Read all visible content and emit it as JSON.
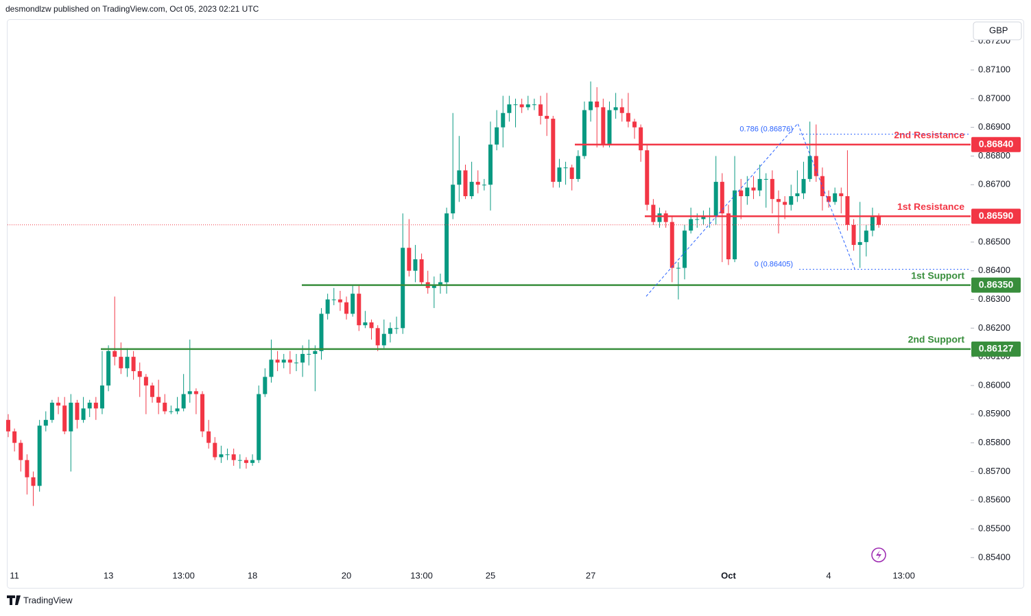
{
  "header": {
    "byline": "desmondlzw published on TradingView.com, Oct 05, 2023 02:21 UTC",
    "currency": "GBP",
    "brand": "TradingView"
  },
  "chart_data": {
    "type": "candlestick",
    "up_color": "#089981",
    "down_color": "#f23645",
    "categories": [
      null,
      "11",
      null,
      null,
      null,
      null,
      null,
      null,
      null,
      null,
      null,
      null,
      null,
      null,
      null,
      null,
      "13",
      null,
      null,
      null,
      null,
      null,
      null,
      null,
      null,
      null,
      null,
      null,
      "13:00",
      null,
      null,
      null,
      null,
      null,
      null,
      null,
      null,
      null,
      null,
      "18",
      null,
      null,
      null,
      null,
      null,
      null,
      null,
      null,
      null,
      null,
      null,
      null,
      null,
      null,
      "20",
      null,
      null,
      null,
      null,
      null,
      null,
      null,
      null,
      null,
      null,
      null,
      "13:00",
      null,
      null,
      null,
      null,
      null,
      null,
      null,
      null,
      null,
      null,
      "25",
      null,
      null,
      null,
      null,
      null,
      null,
      null,
      null,
      null,
      null,
      null,
      null,
      null,
      null,
      null,
      "27",
      null,
      null,
      null,
      null,
      null,
      null,
      null,
      null,
      null,
      null,
      null,
      null,
      null,
      null,
      null,
      null,
      null,
      null,
      null,
      null,
      null,
      "Oct",
      null,
      null,
      null,
      null,
      null,
      null,
      null,
      null,
      null,
      null,
      null,
      null,
      null,
      null,
      null,
      "4",
      null,
      null,
      null,
      null,
      null,
      null,
      null,
      null,
      null,
      null,
      null,
      "13:00"
    ],
    "open": [
      0.8588,
      0.8584,
      0.858,
      0.8574,
      0.8568,
      0.8565,
      0.8586,
      0.8588,
      0.8594,
      0.8593,
      0.8584,
      0.8594,
      0.8588,
      0.8592,
      0.8594,
      0.8592,
      0.86,
      0.8612,
      0.861,
      0.8606,
      0.861,
      0.8605,
      0.8603,
      0.86,
      0.8596,
      0.8594,
      0.8591,
      0.8591,
      0.8592,
      0.8597,
      0.8598,
      0.8597,
      0.8584,
      0.858,
      0.8575,
      0.8576,
      0.8576,
      0.8574,
      0.8574,
      0.8573,
      0.8574,
      0.8597,
      0.8603,
      0.8609,
      0.8608,
      0.8609,
      0.8608,
      0.8608,
      0.8611,
      0.8611,
      0.8612,
      0.8625,
      0.863,
      0.863,
      0.8629,
      0.8625,
      0.8632,
      0.8621,
      0.8622,
      0.862,
      0.8614,
      0.8618,
      0.862,
      0.862,
      0.8648,
      0.864,
      0.8644,
      0.8636,
      0.8634,
      0.8635,
      0.8636,
      0.866,
      0.867,
      0.8675,
      0.8666,
      0.8671,
      0.867,
      0.867,
      0.8684,
      0.869,
      0.8695,
      0.8698,
      0.8698,
      0.8697,
      0.8698,
      0.8698,
      0.8694,
      0.8693,
      0.8671,
      0.8676,
      0.8676,
      0.8672,
      0.868,
      0.8696,
      0.8699,
      0.8697,
      0.8684,
      0.8696,
      0.8697,
      0.8695,
      0.8692,
      0.869,
      0.8682,
      0.8663,
      0.8657,
      0.866,
      0.8657,
      0.8641,
      0.8641,
      0.8654,
      0.8658,
      0.8658,
      0.8659,
      0.8659,
      0.8671,
      0.866,
      0.8644,
      0.8668,
      0.8666,
      0.8669,
      0.8668,
      0.8672,
      0.8672,
      0.8665,
      0.8664,
      0.8663,
      0.8666,
      0.8667,
      0.8672,
      0.868,
      0.8673,
      0.8666,
      0.8664,
      0.8667,
      0.8666,
      0.8656,
      0.8649,
      0.865,
      0.8654,
      0.8659,
      null,
      null,
      null,
      null
    ],
    "high": [
      0.859,
      0.8585,
      0.8581,
      0.8576,
      0.857,
      0.8588,
      0.8591,
      0.8595,
      0.8596,
      0.8596,
      0.8597,
      0.8595,
      0.8596,
      0.8595,
      0.8596,
      0.8612,
      0.8614,
      0.8631,
      0.8615,
      0.8613,
      0.8612,
      0.8608,
      0.8604,
      0.8601,
      0.8602,
      0.8597,
      0.8593,
      0.8596,
      0.8604,
      0.8616,
      0.8599,
      0.8598,
      0.8588,
      0.8582,
      0.8579,
      0.8578,
      0.8578,
      0.8576,
      0.8575,
      0.8576,
      0.86,
      0.8606,
      0.8616,
      0.8612,
      0.8611,
      0.8612,
      0.8611,
      0.8614,
      0.8616,
      0.8614,
      0.8627,
      0.8632,
      0.8634,
      0.8633,
      0.8631,
      0.8635,
      0.8635,
      0.8626,
      0.8623,
      0.8621,
      0.8623,
      0.8622,
      0.8624,
      0.866,
      0.8658,
      0.8649,
      0.8646,
      0.864,
      0.8638,
      0.8639,
      0.8662,
      0.8695,
      0.8687,
      0.8677,
      0.8678,
      0.8675,
      0.8672,
      0.8692,
      0.8696,
      0.8701,
      0.8701,
      0.87,
      0.87,
      0.8701,
      0.87,
      0.8701,
      0.8702,
      0.8694,
      0.8679,
      0.8678,
      0.8677,
      0.8682,
      0.8699,
      0.8706,
      0.8704,
      0.87,
      0.8699,
      0.8702,
      0.87,
      0.8702,
      0.8693,
      0.8691,
      0.8684,
      0.8665,
      0.8662,
      0.8661,
      0.8659,
      0.8643,
      0.8656,
      0.8662,
      0.866,
      0.8661,
      0.8662,
      0.868,
      0.8674,
      0.8663,
      0.868,
      0.8672,
      0.8673,
      0.8673,
      0.8677,
      0.8674,
      0.8675,
      0.8668,
      0.8666,
      0.867,
      0.8675,
      0.8678,
      0.8692,
      0.8691,
      0.8676,
      0.8668,
      0.8669,
      0.8669,
      0.8682,
      0.8658,
      0.8664,
      0.8656,
      0.8662,
      0.866,
      null,
      null,
      null,
      null
    ],
    "low": [
      0.8582,
      0.8577,
      0.857,
      0.8562,
      0.8558,
      0.8563,
      0.8584,
      0.8587,
      0.859,
      0.8583,
      0.857,
      0.8585,
      0.8587,
      0.8589,
      0.8588,
      0.859,
      0.8598,
      0.8607,
      0.8604,
      0.8603,
      0.8602,
      0.8596,
      0.859,
      0.8594,
      0.859,
      0.859,
      0.859,
      0.859,
      0.8591,
      0.8594,
      0.859,
      0.8582,
      0.8578,
      0.8574,
      0.8573,
      0.8574,
      0.8572,
      0.8571,
      0.8571,
      0.8572,
      0.8573,
      0.8596,
      0.8601,
      0.8605,
      0.8606,
      0.8604,
      0.8605,
      0.8603,
      0.8607,
      0.8598,
      0.8609,
      0.8623,
      0.8628,
      0.8626,
      0.8623,
      0.8624,
      0.8619,
      0.862,
      0.8616,
      0.8612,
      0.8613,
      0.8615,
      0.8618,
      0.8618,
      0.8638,
      0.8636,
      0.8635,
      0.8632,
      0.8627,
      0.8632,
      0.8632,
      0.8658,
      0.8664,
      0.8665,
      0.8665,
      0.8667,
      0.8668,
      0.8661,
      0.8682,
      0.8683,
      0.8692,
      0.869,
      0.8695,
      0.8696,
      0.8696,
      0.8691,
      0.8687,
      0.8669,
      0.8669,
      0.867,
      0.8668,
      0.8671,
      0.8679,
      0.8692,
      0.8683,
      0.8683,
      0.8683,
      0.8693,
      0.8692,
      0.869,
      0.8686,
      0.8678,
      0.8661,
      0.8656,
      0.8655,
      0.8655,
      0.8636,
      0.863,
      0.8637,
      0.8653,
      0.8655,
      0.8656,
      0.8655,
      0.8656,
      0.8643,
      0.8642,
      0.8643,
      0.8658,
      0.8663,
      0.8665,
      0.8666,
      0.8662,
      0.866,
      0.8653,
      0.8658,
      0.8661,
      0.8664,
      0.8665,
      0.8671,
      0.8671,
      0.8661,
      0.8662,
      0.8663,
      0.866,
      0.8654,
      0.8647,
      0.8641,
      0.8645,
      0.8652,
      0.8655,
      null,
      null,
      null,
      null
    ],
    "close": [
      0.8584,
      0.858,
      0.8574,
      0.8568,
      0.8565,
      0.8586,
      0.8588,
      0.8594,
      0.8593,
      0.8584,
      0.8594,
      0.8588,
      0.8592,
      0.8594,
      0.8592,
      0.86,
      0.8612,
      0.861,
      0.8606,
      0.861,
      0.8605,
      0.8603,
      0.86,
      0.8596,
      0.8594,
      0.8591,
      0.8591,
      0.8592,
      0.8597,
      0.8598,
      0.8597,
      0.8584,
      0.858,
      0.8575,
      0.8576,
      0.8576,
      0.8574,
      0.8574,
      0.8573,
      0.8574,
      0.8597,
      0.8603,
      0.8609,
      0.8608,
      0.8609,
      0.8608,
      0.8608,
      0.8611,
      0.8611,
      0.8612,
      0.8625,
      0.863,
      0.863,
      0.8629,
      0.8625,
      0.8632,
      0.8621,
      0.8622,
      0.862,
      0.8614,
      0.8618,
      0.862,
      0.862,
      0.8648,
      0.864,
      0.8644,
      0.8636,
      0.8634,
      0.8635,
      0.8636,
      0.866,
      0.867,
      0.8675,
      0.8666,
      0.8671,
      0.867,
      0.867,
      0.8684,
      0.869,
      0.8695,
      0.8698,
      0.8698,
      0.8697,
      0.8698,
      0.8698,
      0.8694,
      0.8693,
      0.8671,
      0.8676,
      0.8676,
      0.8672,
      0.868,
      0.8696,
      0.8699,
      0.8697,
      0.8684,
      0.8696,
      0.8697,
      0.8695,
      0.8692,
      0.869,
      0.8682,
      0.8663,
      0.8657,
      0.866,
      0.8657,
      0.8641,
      0.8641,
      0.8654,
      0.8658,
      0.8658,
      0.8659,
      0.8659,
      0.8671,
      0.866,
      0.8644,
      0.8668,
      0.8666,
      0.8669,
      0.8668,
      0.8672,
      0.8672,
      0.8665,
      0.8664,
      0.8663,
      0.8666,
      0.8667,
      0.8672,
      0.868,
      0.8673,
      0.8666,
      0.8664,
      0.8667,
      0.8666,
      0.8656,
      0.8649,
      0.865,
      0.8654,
      0.8659,
      0.8656,
      null,
      null,
      null,
      null
    ],
    "ylim": [
      0.85292,
      0.87277
    ],
    "yticks": [
      {
        "value": 0.872,
        "label": "0.87200"
      },
      {
        "value": 0.871,
        "label": "0.87100"
      },
      {
        "value": 0.87,
        "label": "0.87000"
      },
      {
        "value": 0.869,
        "label": "0.86900"
      },
      {
        "value": 0.868,
        "label": "0.86800"
      },
      {
        "value": 0.867,
        "label": "0.86700"
      },
      {
        "value": 0.865,
        "label": "0.86500"
      },
      {
        "value": 0.864,
        "label": "0.86400"
      },
      {
        "value": 0.863,
        "label": "0.86300"
      },
      {
        "value": 0.862,
        "label": "0.86200"
      },
      {
        "value": 0.861,
        "label": "0.86100"
      },
      {
        "value": 0.86,
        "label": "0.86000"
      },
      {
        "value": 0.859,
        "label": "0.85900"
      },
      {
        "value": 0.858,
        "label": "0.85800"
      },
      {
        "value": 0.857,
        "label": "0.85700"
      },
      {
        "value": 0.856,
        "label": "0.85600"
      },
      {
        "value": 0.855,
        "label": "0.85500"
      },
      {
        "value": 0.854,
        "label": "0.85400"
      }
    ],
    "levels": [
      {
        "name": "2nd Resistance",
        "value": 0.8684,
        "label": "0.86840",
        "color": "#f23645"
      },
      {
        "name": "1st Resistance",
        "value": 0.8659,
        "label": "0.86590",
        "color": "#f23645"
      },
      {
        "name": "1st Support",
        "value": 0.8635,
        "label": "0.86350",
        "color": "#388e3c"
      },
      {
        "name": "2nd Support",
        "value": 0.86127,
        "label": "0.86127",
        "color": "#388e3c"
      }
    ],
    "fib": [
      {
        "label": "0.786 (0.86876)",
        "value": 0.86876
      },
      {
        "label": "0 (0.86405)",
        "value": 0.86405
      }
    ],
    "fib_color": "#2962ff"
  }
}
